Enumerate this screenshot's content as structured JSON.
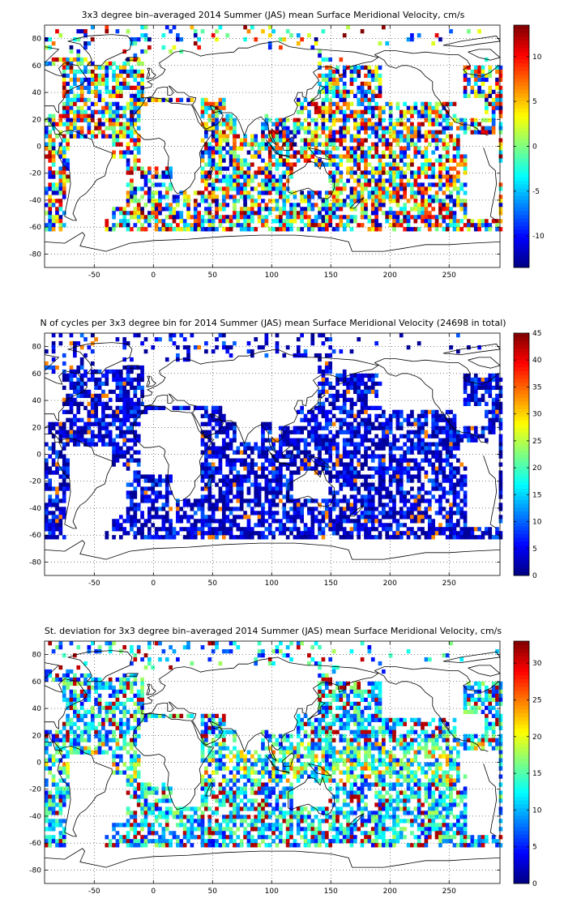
{
  "chart_data": [
    {
      "type": "heatmap",
      "title": "3x3 degree bin–averaged 2014 Summer (JAS) mean Surface Meridional Velocity, cm/s",
      "xlim": [
        -92,
        293
      ],
      "ylim": [
        -90,
        90
      ],
      "xticks": [
        "-50",
        "0",
        "50",
        "100",
        "150",
        "200",
        "250"
      ],
      "xtick_values": [
        -50,
        0,
        50,
        100,
        150,
        200,
        250
      ],
      "yticks": [
        "80",
        "60",
        "40",
        "20",
        "0",
        "-20",
        "-40",
        "-60",
        "-80"
      ],
      "ytick_values": [
        80,
        60,
        40,
        20,
        0,
        -20,
        -40,
        -60,
        -80
      ],
      "grid": true,
      "colormap": "jet",
      "clim": [
        -13.5,
        13.5
      ],
      "colorbar_ticks": [
        "10",
        "5",
        "0",
        "-5",
        "-10"
      ],
      "colorbar_tick_values": [
        10,
        5,
        0,
        -5,
        -10
      ],
      "bin_size_deg": 3
    },
    {
      "type": "heatmap",
      "title": "N of cycles per 3x3 degree bin for 2014 Summer (JAS) mean Surface Meridional Velocity (24698 in total)",
      "xlim": [
        -92,
        293
      ],
      "ylim": [
        -90,
        90
      ],
      "xticks": [
        "-50",
        "0",
        "50",
        "100",
        "150",
        "200",
        "250"
      ],
      "xtick_values": [
        -50,
        0,
        50,
        100,
        150,
        200,
        250
      ],
      "yticks": [
        "80",
        "60",
        "40",
        "20",
        "0",
        "-20",
        "-40",
        "-60",
        "-80"
      ],
      "ytick_values": [
        80,
        60,
        40,
        20,
        0,
        -20,
        -40,
        -60,
        -80
      ],
      "grid": true,
      "colormap": "jet",
      "clim": [
        0,
        45
      ],
      "colorbar_ticks": [
        "45",
        "40",
        "35",
        "30",
        "25",
        "20",
        "15",
        "10",
        "5",
        "0"
      ],
      "colorbar_tick_values": [
        45,
        40,
        35,
        30,
        25,
        20,
        15,
        10,
        5,
        0
      ],
      "bin_size_deg": 3
    },
    {
      "type": "heatmap",
      "title": "St. deviation for 3x3 degree bin–averaged 2014 Summer (JAS) mean Surface Meridional Velocity, cm/s",
      "xlim": [
        -92,
        293
      ],
      "ylim": [
        -90,
        90
      ],
      "xticks": [
        "-50",
        "0",
        "50",
        "100",
        "150",
        "200",
        "250"
      ],
      "xtick_values": [
        -50,
        0,
        50,
        100,
        150,
        200,
        250
      ],
      "yticks": [
        "80",
        "60",
        "40",
        "20",
        "0",
        "-20",
        "-40",
        "-60",
        "-80"
      ],
      "ytick_values": [
        80,
        60,
        40,
        20,
        0,
        -20,
        -40,
        -60,
        -80
      ],
      "grid": true,
      "colormap": "jet",
      "clim": [
        0,
        33
      ],
      "colorbar_ticks": [
        "30",
        "25",
        "20",
        "15",
        "10",
        "5",
        "0"
      ],
      "colorbar_tick_values": [
        30,
        25,
        20,
        15,
        10,
        5,
        0
      ],
      "bin_size_deg": 3
    }
  ]
}
